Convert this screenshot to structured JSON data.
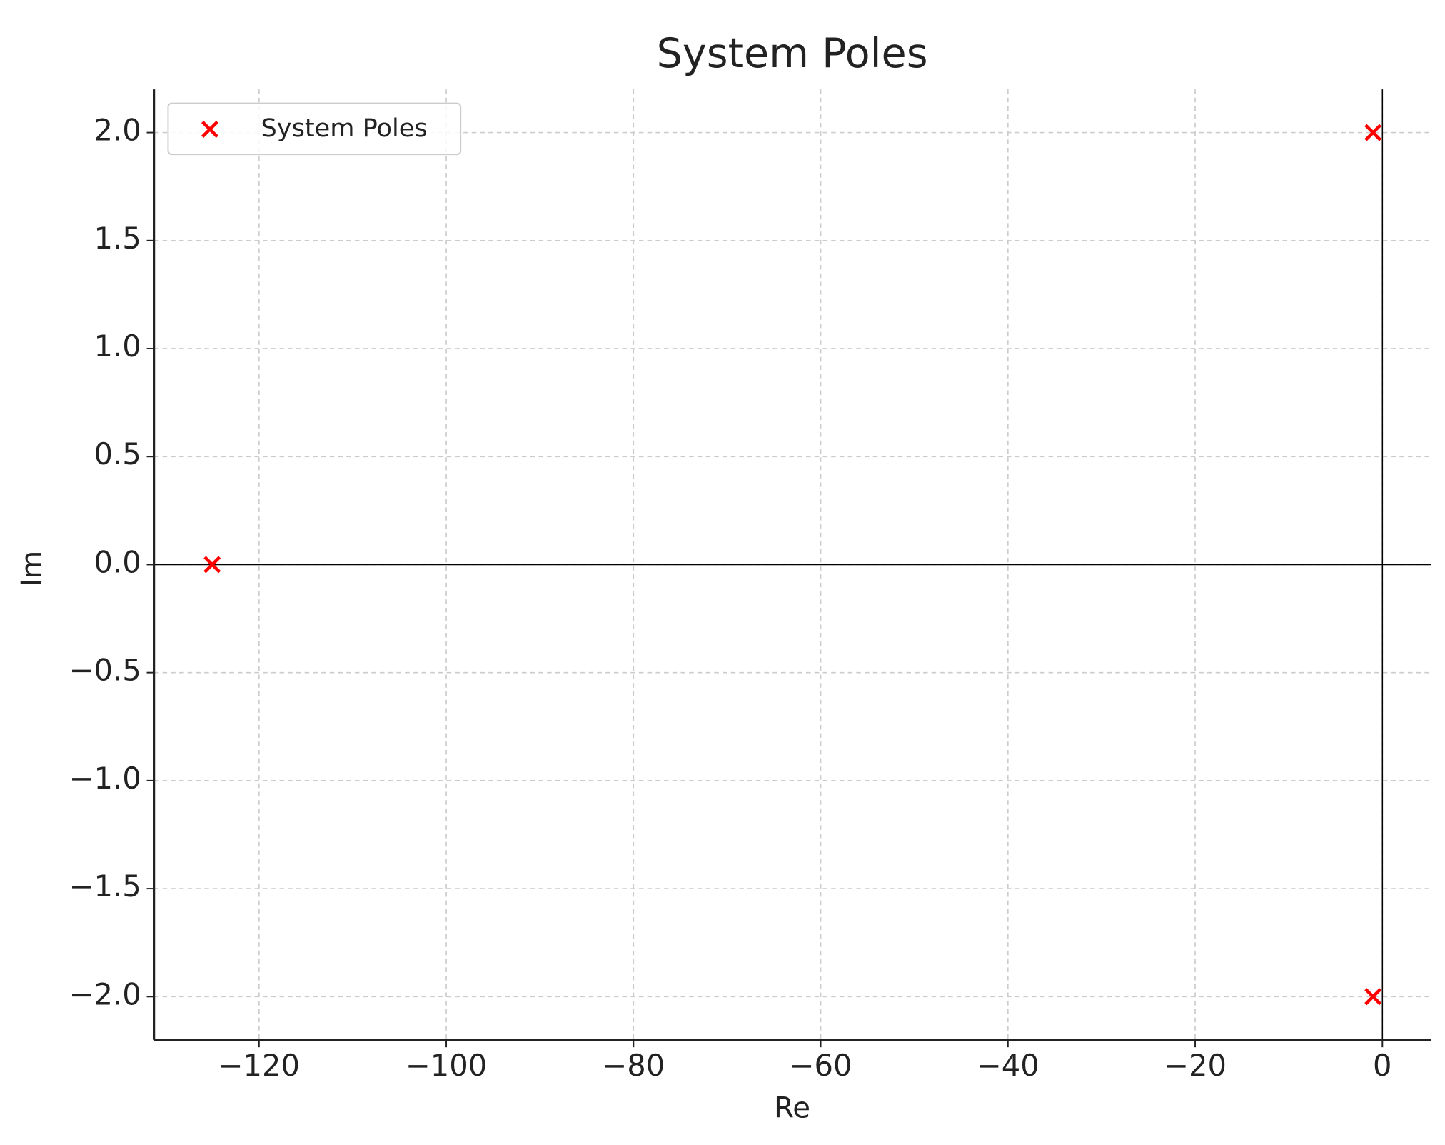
{
  "chart_data": {
    "type": "scatter",
    "title": "System Poles",
    "x_label": "Re",
    "y_label": "Im",
    "series": [
      {
        "name": "System Poles",
        "color": "#ff0000",
        "marker": "x",
        "x": [
          -125,
          -1,
          -1
        ],
        "values": [
          0,
          2,
          -2
        ]
      }
    ],
    "xlim": [
      -131.2,
      5.2
    ],
    "ylim": [
      -2.2,
      2.2
    ],
    "xticks": [
      {
        "value": -120,
        "label": "−120"
      },
      {
        "value": -100,
        "label": "−100"
      },
      {
        "value": -80,
        "label": "−80"
      },
      {
        "value": -60,
        "label": "−60"
      },
      {
        "value": -40,
        "label": "−40"
      },
      {
        "value": -20,
        "label": "−20"
      },
      0
    ],
    "yticks": [
      {
        "value": -2,
        "label": "−2.0"
      },
      {
        "value": -1.5,
        "label": "−1.5"
      },
      {
        "value": -1,
        "label": "−1.0"
      },
      {
        "value": -0.5,
        "label": "−0.5"
      },
      {
        "value": 0,
        "label": "0.0"
      },
      {
        "value": 0.5,
        "label": "0.5"
      },
      {
        "value": 1,
        "label": "1.0"
      },
      {
        "value": 1.5,
        "label": "1.5"
      },
      {
        "value": 2,
        "label": "2.0"
      }
    ],
    "grid": true,
    "zero_lines": true,
    "legend": "upper left"
  }
}
